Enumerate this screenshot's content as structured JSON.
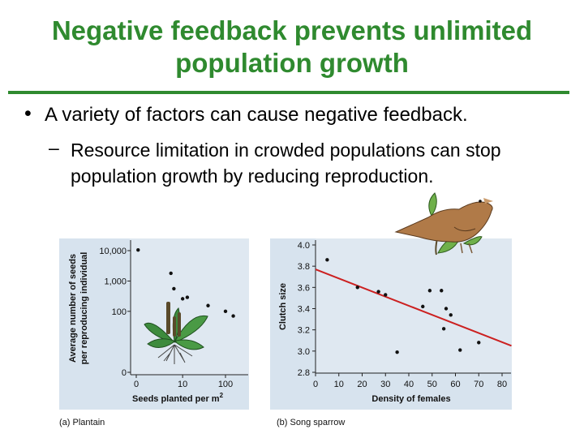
{
  "slide": {
    "title_line1": "Negative feedback prevents unlimited",
    "title_line2": "population growth",
    "bullet_marker": "•",
    "bullet_text": "A variety of factors can cause negative feedback.",
    "sub_marker": "–",
    "sub_text": "Resource limitation in crowded populations can stop population growth by reducing reproduction.",
    "accent_color": "#2f8a2f"
  },
  "chart_data": [
    {
      "type": "scatter",
      "caption": "(a) Plantain",
      "xlabel": "Seeds planted per m",
      "xlabel_sup": "2",
      "ylabel_line1": "Average number of seeds",
      "ylabel_line2": "per reproducing individual",
      "x_ticks": [
        "0",
        "10",
        "100"
      ],
      "y_ticks": [
        "10,000",
        "1,000",
        "100",
        "0"
      ],
      "points": [
        {
          "x": 0.1,
          "y": 10500
        },
        {
          "x": 5,
          "y": 1800
        },
        {
          "x": 6,
          "y": 560
        },
        {
          "x": 10,
          "y": 260
        },
        {
          "x": 13,
          "y": 290
        },
        {
          "x": 40,
          "y": 155
        },
        {
          "x": 100,
          "y": 100
        },
        {
          "x": 150,
          "y": 70
        }
      ]
    },
    {
      "type": "scatter",
      "caption": "(b) Song sparrow",
      "xlabel": "Density of females",
      "ylabel": "Clutch size",
      "xlim": [
        0,
        80
      ],
      "ylim": [
        2.8,
        4.0
      ],
      "x_ticks": [
        "0",
        "10",
        "20",
        "30",
        "40",
        "50",
        "60",
        "70",
        "80"
      ],
      "y_ticks": [
        "4.0",
        "3.8",
        "3.6",
        "3.4",
        "3.2",
        "3.0",
        "2.8"
      ],
      "points": [
        {
          "x": 5,
          "y": 3.86
        },
        {
          "x": 18,
          "y": 3.6
        },
        {
          "x": 27,
          "y": 3.56
        },
        {
          "x": 30,
          "y": 3.53
        },
        {
          "x": 35,
          "y": 2.99
        },
        {
          "x": 46,
          "y": 3.42
        },
        {
          "x": 49,
          "y": 3.57
        },
        {
          "x": 54,
          "y": 3.57
        },
        {
          "x": 55,
          "y": 3.21
        },
        {
          "x": 56,
          "y": 3.4
        },
        {
          "x": 58,
          "y": 3.34
        },
        {
          "x": 62,
          "y": 3.01
        },
        {
          "x": 70,
          "y": 3.08
        }
      ],
      "trend_line": {
        "x0": 0,
        "y0": 3.77,
        "x1": 84,
        "y1": 3.05,
        "color": "#cc2020"
      }
    }
  ]
}
